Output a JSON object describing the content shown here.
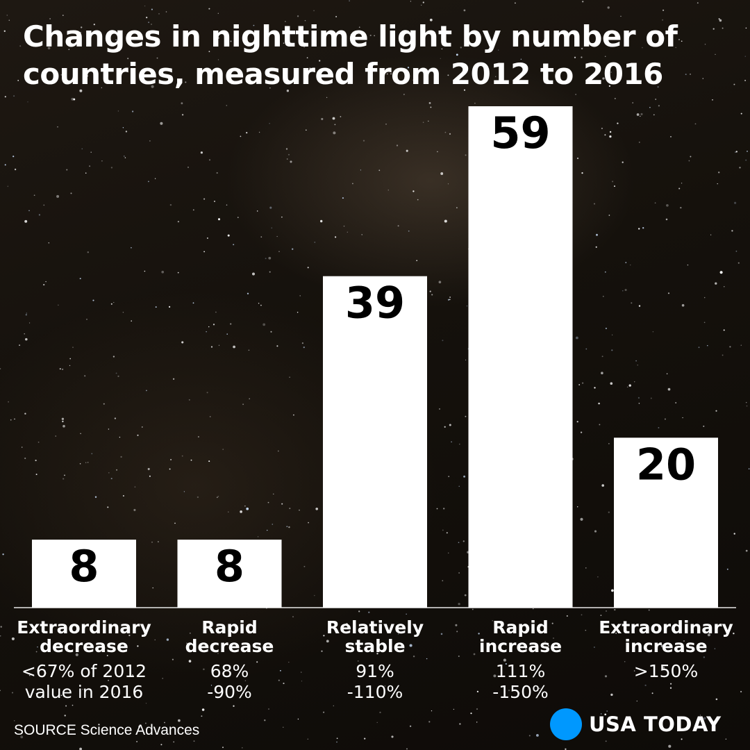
{
  "title": "Changes in nighttime light by number of countries, measured from 2012 to 2016",
  "source": "SOURCE Science Advances",
  "brand": {
    "name": "USA TODAY",
    "dot_color": "#0098fe"
  },
  "colors": {
    "bar": "#ffffff",
    "background": "#15110c",
    "text": "#ffffff"
  },
  "chart_data": {
    "type": "bar",
    "title": "Changes in nighttime light by number of countries, measured from 2012 to 2016",
    "categories": [
      "Extraordinary decrease",
      "Rapid decrease",
      "Relatively stable",
      "Rapid increase",
      "Extraordinary increase"
    ],
    "category_lines": [
      [
        "Extraordinary",
        "decrease"
      ],
      [
        "Rapid",
        "decrease"
      ],
      [
        "Relatively",
        "stable"
      ],
      [
        "Rapid",
        "increase"
      ],
      [
        "Extraordinary",
        "increase"
      ]
    ],
    "ranges": [
      [
        "<67% of 2012",
        "value in 2016"
      ],
      [
        "68%",
        "-90%"
      ],
      [
        "91%",
        "-110%"
      ],
      [
        "111%",
        "-150%"
      ],
      [
        ">150%"
      ]
    ],
    "values": [
      8,
      8,
      39,
      59,
      20
    ],
    "ylim": [
      0,
      59
    ],
    "grid": false,
    "legend": "none",
    "data_labels": true
  }
}
